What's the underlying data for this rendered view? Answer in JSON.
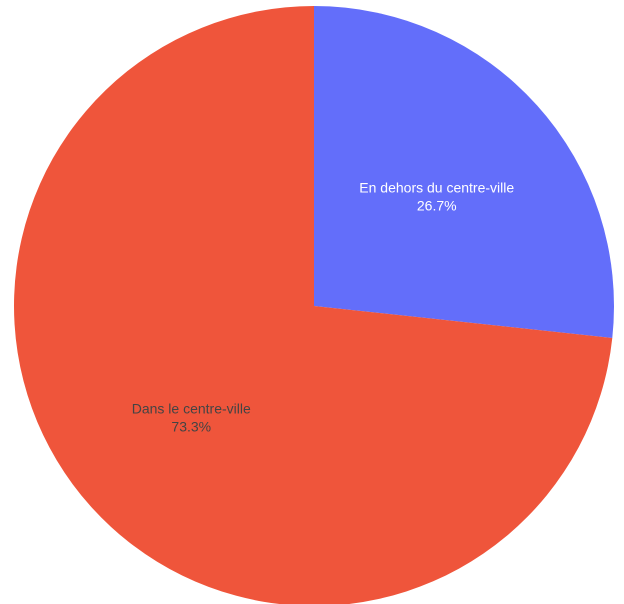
{
  "chart_data": {
    "type": "pie",
    "slices": [
      {
        "label": "En dehors du centre-ville",
        "value": 26.7,
        "percent_label": "26.7%",
        "color": "#636efa",
        "text_color": "#ffffff"
      },
      {
        "label": "Dans le centre-ville",
        "value": 73.3,
        "percent_label": "73.3%",
        "color": "#ef553b",
        "text_color": "#444444"
      }
    ],
    "start_angle": "12 o'clock",
    "direction": "clockwise",
    "legend": "none"
  }
}
